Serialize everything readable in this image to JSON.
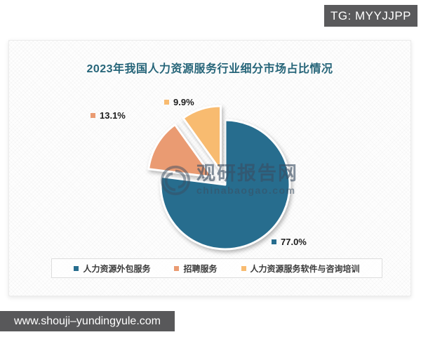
{
  "badge": {
    "text": "TG: MYYJJPP"
  },
  "footer": {
    "url": "www.shouji–yundingyule.com"
  },
  "watermark": {
    "name": "观研报告网",
    "domain": "chinabaogao.com"
  },
  "chart_data": {
    "type": "pie",
    "title": "2023年我国人力资源服务行业细分市场占比情况",
    "series": [
      {
        "name": "人力资源外包服务",
        "value": 77.0,
        "label": "77.0%",
        "color": "#276d8e",
        "exploded": false
      },
      {
        "name": "招聘服务",
        "value": 13.1,
        "label": "13.1%",
        "color": "#ea9b72",
        "exploded": true
      },
      {
        "name": "人力资源服务软件与咨询培训",
        "value": 9.9,
        "label": "9.9%",
        "color": "#f8bb70",
        "exploded": true
      }
    ],
    "start_angle_deg": 0,
    "direction": "clockwise",
    "legend_position": "bottom"
  }
}
